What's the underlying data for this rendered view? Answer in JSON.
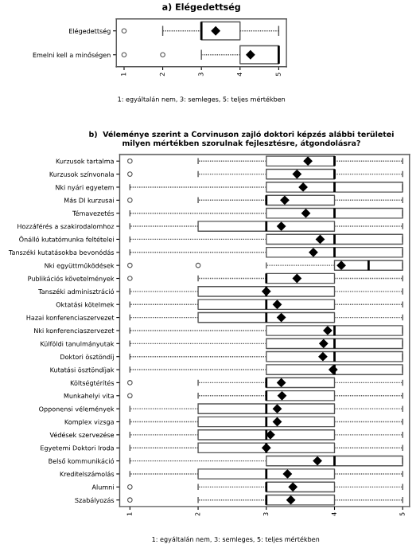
{
  "chart_data": [
    {
      "type": "box",
      "orientation": "horizontal",
      "title": "a) Elégedettség",
      "categories": [
        "Elégedettség",
        "Emelni kell a minőségen"
      ],
      "boxes": [
        {
          "low": 2,
          "q1": 3,
          "median": 3,
          "q3": 4,
          "high": 5,
          "mean": 3.37,
          "outliers": [
            1
          ]
        },
        {
          "low": 3,
          "q1": 4,
          "median": 5,
          "q3": 5,
          "high": 5,
          "mean": 4.27,
          "outliers": [
            1,
            2
          ]
        }
      ],
      "xlim": [
        0.8,
        5.2
      ],
      "xticks": [
        1,
        2,
        3,
        4,
        5
      ],
      "grid": false,
      "annotations": [
        "1: egyáltalán nem, 3: semleges, 5: teljes mértékben"
      ]
    },
    {
      "type": "box",
      "orientation": "horizontal",
      "title": "b)  Véleménye szerint a Corvinuson zajló doktori képzés alábbi területei\nmilyen mértékben szorulnak fejlesztésre, átgondolásra?",
      "categories": [
        "Kurzusok tartalma",
        "Kurzusok színvonala",
        "Nki nyári egyetem",
        "Más DI kurzusai",
        "Témavezetés",
        "Hozzáférés a szakirodalomhoz",
        "Önálló kutatómunka feltételei",
        "Tanszéki kutatásokba bevonódás",
        "Nki együttműködések",
        "Publikációs követelmények",
        "Tanszéki adminisztráció",
        "Oktatási kötelmek",
        "Hazai konferenciaszervezet",
        "Nki konferenciaszervezet",
        "Külföldi tanulmányutak",
        "Doktori ösztöndíj",
        "Kutatási ösztöndíjak",
        "Költségtérítés",
        "Munkahelyi vita",
        "Opponensi vélemények",
        "Komplex vizsga",
        "Védések szervezése",
        "Egyetemi Doktori Iroda",
        "Belső kommunikáció",
        "Kreditelszámolás",
        "Alumni",
        "Szabályozás"
      ],
      "boxes": [
        {
          "low": 2,
          "q1": 3,
          "median": 4,
          "q3": 4,
          "high": 5,
          "mean": 3.61,
          "outliers": [
            1
          ]
        },
        {
          "low": 2,
          "q1": 3,
          "median": 4,
          "q3": 4,
          "high": 5,
          "mean": 3.45,
          "outliers": [
            1
          ]
        },
        {
          "low": 1,
          "q1": 3,
          "median": 4,
          "q3": 5,
          "high": 5,
          "mean": 3.54
        },
        {
          "low": 2,
          "q1": 3,
          "median": 3,
          "q3": 4,
          "high": 5,
          "mean": 3.27,
          "outliers": [
            1
          ]
        },
        {
          "low": 1,
          "q1": 3,
          "median": 4,
          "q3": 5,
          "high": 5,
          "mean": 3.58
        },
        {
          "low": 1,
          "q1": 2,
          "median": 3,
          "q3": 4,
          "high": 5,
          "mean": 3.22
        },
        {
          "low": 1,
          "q1": 3,
          "median": 4,
          "q3": 5,
          "high": 5,
          "mean": 3.79
        },
        {
          "low": 1,
          "q1": 3,
          "median": 4,
          "q3": 5,
          "high": 5,
          "mean": 3.69
        },
        {
          "low": 3,
          "q1": 4,
          "median": 4.5,
          "q3": 5,
          "high": 5,
          "mean": 4.1,
          "outliers": [
            1,
            2
          ]
        },
        {
          "low": 2,
          "q1": 3,
          "median": 3,
          "q3": 4,
          "high": 5,
          "mean": 3.45,
          "outliers": [
            1
          ]
        },
        {
          "low": 1,
          "q1": 2,
          "median": 3,
          "q3": 4,
          "high": 5,
          "mean": 3.0
        },
        {
          "low": 1,
          "q1": 2,
          "median": 3,
          "q3": 4,
          "high": 5,
          "mean": 3.16
        },
        {
          "low": 1,
          "q1": 2,
          "median": 3,
          "q3": 4,
          "high": 5,
          "mean": 3.22
        },
        {
          "low": 1,
          "q1": 3,
          "median": 4,
          "q3": 5,
          "high": 5,
          "mean": 3.9
        },
        {
          "low": 1,
          "q1": 3,
          "median": 4,
          "q3": 5,
          "high": 5,
          "mean": 3.84
        },
        {
          "low": 1,
          "q1": 3,
          "median": 4,
          "q3": 5,
          "high": 5,
          "mean": 3.83
        },
        {
          "low": 1,
          "q1": 3,
          "median": 4,
          "q3": 5,
          "high": 5,
          "mean": 3.98
        },
        {
          "low": 2,
          "q1": 3,
          "median": 3,
          "q3": 4,
          "high": 5,
          "mean": 3.22,
          "outliers": [
            1
          ]
        },
        {
          "low": 2,
          "q1": 3,
          "median": 3,
          "q3": 4,
          "high": 5,
          "mean": 3.23,
          "outliers": [
            1
          ]
        },
        {
          "low": 1,
          "q1": 2,
          "median": 3,
          "q3": 4,
          "high": 5,
          "mean": 3.16
        },
        {
          "low": 1,
          "q1": 2,
          "median": 3,
          "q3": 4,
          "high": 5,
          "mean": 3.16
        },
        {
          "low": 1,
          "q1": 2,
          "median": 3,
          "q3": 4,
          "high": 5,
          "mean": 3.06
        },
        {
          "low": 1,
          "q1": 2,
          "median": 3,
          "q3": 4,
          "high": 5,
          "mean": 3.0
        },
        {
          "low": 1,
          "q1": 3,
          "median": 4,
          "q3": 5,
          "high": 5,
          "mean": 3.75
        },
        {
          "low": 1,
          "q1": 2,
          "median": 3,
          "q3": 4,
          "high": 5,
          "mean": 3.31
        },
        {
          "low": 2,
          "q1": 3,
          "median": 3,
          "q3": 4,
          "high": 5,
          "mean": 3.39,
          "outliers": [
            1
          ]
        },
        {
          "low": 2,
          "q1": 3,
          "median": 3,
          "q3": 4,
          "high": 5,
          "mean": 3.36,
          "outliers": [
            1
          ]
        }
      ],
      "xlim": [
        0.85,
        5.1
      ],
      "xticks": [
        1,
        2,
        3,
        4,
        5
      ],
      "grid": false,
      "annotations": [
        "1: egyáltalán nem, 3: semleges, 5: teljes mértékben"
      ]
    }
  ]
}
